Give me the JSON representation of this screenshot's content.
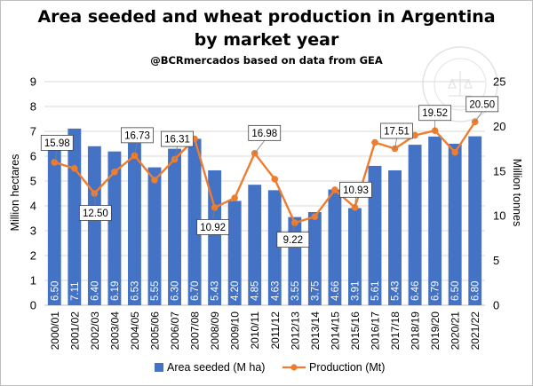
{
  "chart_data": {
    "type": "bar",
    "title": "Area seeded and wheat production in Argentina by market year",
    "subtitle": "@BCRmercados based on data from GEA",
    "categories": [
      "2000/01",
      "2001/02",
      "2002/03",
      "2003/04",
      "2004/05",
      "2005/06",
      "2006/07",
      "2007/08",
      "2008/09",
      "2009/10",
      "2010/11",
      "2011/12",
      "2012/13",
      "2013/14",
      "2014/15",
      "2015/16",
      "2016/17",
      "2017/18",
      "2018/19",
      "2019/20",
      "2020/21",
      "2021/22"
    ],
    "series": [
      {
        "name": "Area seeded (M ha)",
        "type": "bar",
        "axis": "left",
        "color": "#4472c4",
        "values": [
          6.5,
          7.11,
          6.4,
          6.19,
          6.53,
          5.55,
          6.3,
          6.7,
          5.43,
          4.2,
          4.85,
          4.63,
          3.55,
          3.75,
          4.66,
          3.91,
          5.61,
          5.43,
          6.46,
          6.79,
          6.5,
          6.8
        ],
        "labels": [
          "6.50",
          "7.11",
          "6.40",
          "6.19",
          "6.53",
          "5.55",
          "6.30",
          "6.70",
          "5.43",
          "4.20",
          "4.85",
          "4.63",
          "3.55",
          "3.75",
          "4.66",
          "3.91",
          "5.61",
          "5.43",
          "6.46",
          "6.79",
          "6.50",
          "6.80"
        ]
      },
      {
        "name": "Production (Mt)",
        "type": "line",
        "axis": "right",
        "color": "#ed7d31",
        "values": [
          15.98,
          15.3,
          12.5,
          14.9,
          16.73,
          14.0,
          16.31,
          18.6,
          10.92,
          12.0,
          16.98,
          14.1,
          9.22,
          9.9,
          12.9,
          10.93,
          18.2,
          17.51,
          19.0,
          19.52,
          17.1,
          20.5
        ]
      }
    ],
    "annotations": [
      {
        "index": 0,
        "text": "15.98"
      },
      {
        "index": 2,
        "text": "12.50"
      },
      {
        "index": 4,
        "text": "16.73"
      },
      {
        "index": 6,
        "text": "16.31"
      },
      {
        "index": 8,
        "text": "10.92"
      },
      {
        "index": 10,
        "text": "16.98"
      },
      {
        "index": 12,
        "text": "9.22"
      },
      {
        "index": 15,
        "text": "10.93"
      },
      {
        "index": 17,
        "text": "17.51"
      },
      {
        "index": 19,
        "text": "19.52"
      },
      {
        "index": 21,
        "text": "20.50"
      }
    ],
    "ylabel": "Million hectares",
    "y2label": "Million tonnes",
    "ylim": [
      0,
      9
    ],
    "y2lim": [
      0,
      25
    ],
    "yticks": [
      "0",
      "1",
      "2",
      "3",
      "4",
      "5",
      "6",
      "7",
      "8",
      "9"
    ],
    "y2ticks": [
      "0",
      "5",
      "10",
      "15",
      "20",
      "25"
    ],
    "grid": true,
    "legend": "bottom"
  },
  "watermark": {
    "text": "BOLSA DE COMERCIO DE ROSARIO"
  }
}
